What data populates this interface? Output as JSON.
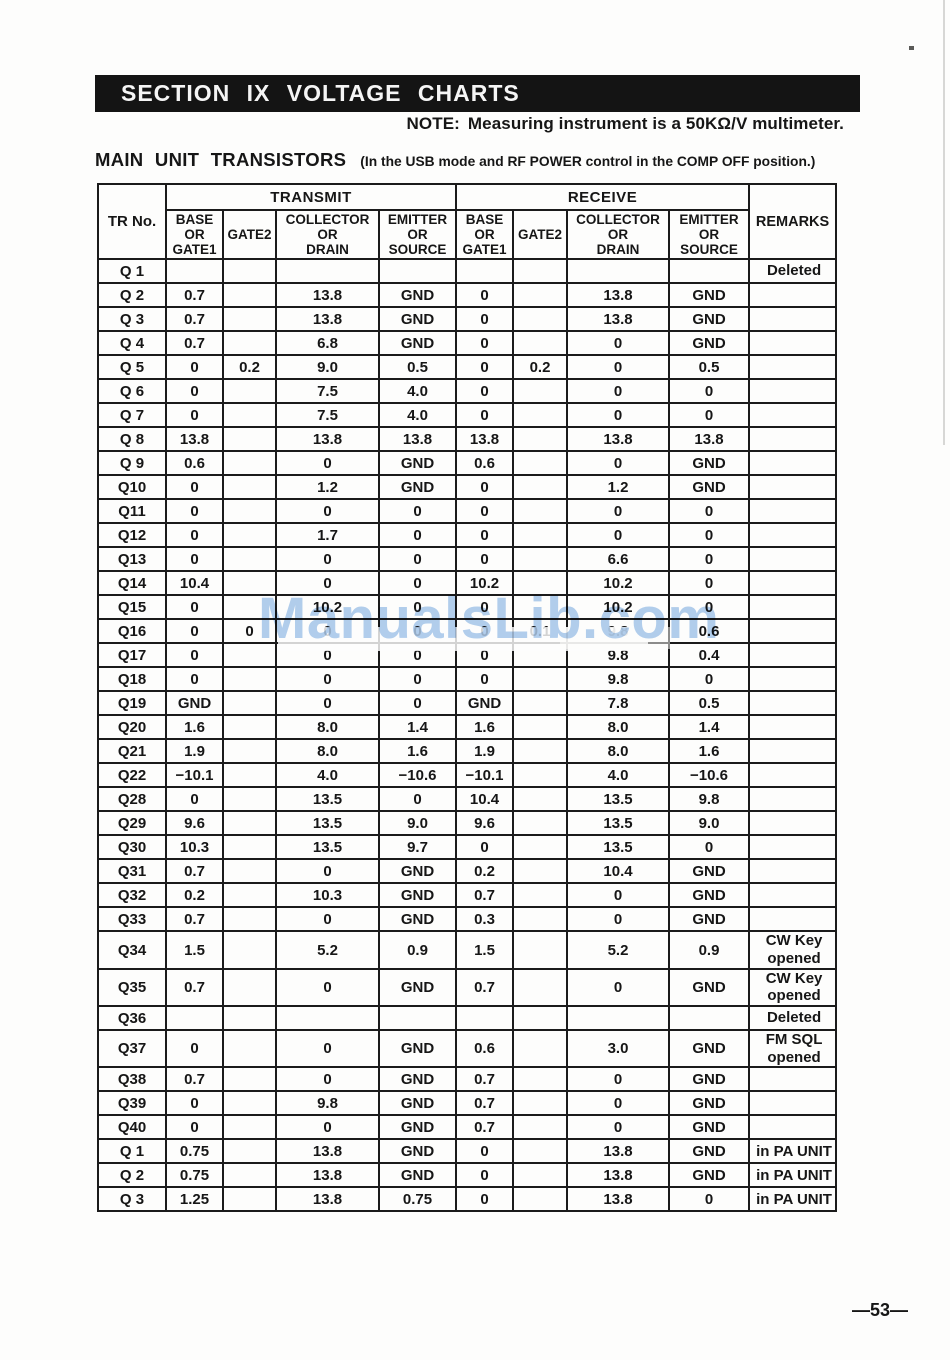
{
  "page": {
    "section_title": "SECTION IX VOLTAGE CHARTS",
    "note_label": "NOTE:",
    "note_text": "Measuring instrument is a 50KΩ/V multimeter.",
    "table_title": "MAIN UNIT TRANSISTORS",
    "table_subtitle": "(In the USB mode and RF POWER control in the COMP OFF position.)",
    "watermark": "ManualsLib.com",
    "watermark_color": "#b3cfee",
    "page_number": "—53—"
  },
  "table": {
    "col_tr": "TR No.",
    "col_remarks": "REMARKS",
    "groups": [
      "TRANSMIT",
      "RECEIVE"
    ],
    "sub_headers": [
      "BASE\nOR\nGATE1",
      "GATE2",
      "COLLECTOR\nOR\nDRAIN",
      "EMITTER\nOR\nSOURCE"
    ],
    "rows": [
      {
        "tr": "Q 1",
        "cells": [
          "",
          "",
          "",
          "",
          "",
          "",
          "",
          ""
        ],
        "remarks": "Deleted"
      },
      {
        "tr": "Q 2",
        "cells": [
          "0.7",
          "",
          "13.8",
          "GND",
          "0",
          "",
          "13.8",
          "GND"
        ],
        "remarks": ""
      },
      {
        "tr": "Q 3",
        "cells": [
          "0.7",
          "",
          "13.8",
          "GND",
          "0",
          "",
          "13.8",
          "GND"
        ],
        "remarks": ""
      },
      {
        "tr": "Q 4",
        "cells": [
          "0.7",
          "",
          "6.8",
          "GND",
          "0",
          "",
          "0",
          "GND"
        ],
        "remarks": ""
      },
      {
        "tr": "Q 5",
        "cells": [
          "0",
          "0.2",
          "9.0",
          "0.5",
          "0",
          "0.2",
          "0",
          "0.5"
        ],
        "remarks": ""
      },
      {
        "tr": "Q 6",
        "cells": [
          "0",
          "",
          "7.5",
          "4.0",
          "0",
          "",
          "0",
          "0"
        ],
        "remarks": ""
      },
      {
        "tr": "Q 7",
        "cells": [
          "0",
          "",
          "7.5",
          "4.0",
          "0",
          "",
          "0",
          "0"
        ],
        "remarks": ""
      },
      {
        "tr": "Q 8",
        "cells": [
          "13.8",
          "",
          "13.8",
          "13.8",
          "13.8",
          "",
          "13.8",
          "13.8"
        ],
        "remarks": ""
      },
      {
        "tr": "Q 9",
        "cells": [
          "0.6",
          "",
          "0",
          "GND",
          "0.6",
          "",
          "0",
          "GND"
        ],
        "remarks": ""
      },
      {
        "tr": "Q10",
        "cells": [
          "0",
          "",
          "1.2",
          "GND",
          "0",
          "",
          "1.2",
          "GND"
        ],
        "remarks": ""
      },
      {
        "tr": "Q11",
        "cells": [
          "0",
          "",
          "0",
          "0",
          "0",
          "",
          "0",
          "0"
        ],
        "remarks": ""
      },
      {
        "tr": "Q12",
        "cells": [
          "0",
          "",
          "1.7",
          "0",
          "0",
          "",
          "0",
          "0"
        ],
        "remarks": ""
      },
      {
        "tr": "Q13",
        "cells": [
          "0",
          "",
          "0",
          "0",
          "0",
          "",
          "6.6",
          "0"
        ],
        "remarks": ""
      },
      {
        "tr": "Q14",
        "cells": [
          "10.4",
          "",
          "0",
          "0",
          "10.2",
          "",
          "10.2",
          "0"
        ],
        "remarks": ""
      },
      {
        "tr": "Q15",
        "cells": [
          "0",
          "",
          "10.2",
          "0",
          "0",
          "",
          "10.2",
          "0"
        ],
        "remarks": ""
      },
      {
        "tr": "Q16",
        "cells": [
          "0",
          "0",
          "0",
          "0",
          "0",
          "0.1",
          "9.8",
          "0.6"
        ],
        "remarks": ""
      },
      {
        "tr": "Q17",
        "cells": [
          "0",
          "",
          "0",
          "0",
          "0",
          "",
          "9.8",
          "0.4"
        ],
        "remarks": ""
      },
      {
        "tr": "Q18",
        "cells": [
          "0",
          "",
          "0",
          "0",
          "0",
          "",
          "9.8",
          "0"
        ],
        "remarks": ""
      },
      {
        "tr": "Q19",
        "cells": [
          "GND",
          "",
          "0",
          "0",
          "GND",
          "",
          "7.8",
          "0.5"
        ],
        "remarks": ""
      },
      {
        "tr": "Q20",
        "cells": [
          "1.6",
          "",
          "8.0",
          "1.4",
          "1.6",
          "",
          "8.0",
          "1.4"
        ],
        "remarks": ""
      },
      {
        "tr": "Q21",
        "cells": [
          "1.9",
          "",
          "8.0",
          "1.6",
          "1.9",
          "",
          "8.0",
          "1.6"
        ],
        "remarks": ""
      },
      {
        "tr": "Q22",
        "cells": [
          "−10.1",
          "",
          "4.0",
          "−10.6",
          "−10.1",
          "",
          "4.0",
          "−10.6"
        ],
        "remarks": ""
      },
      {
        "tr": "Q28",
        "cells": [
          "0",
          "",
          "13.5",
          "0",
          "10.4",
          "",
          "13.5",
          "9.8"
        ],
        "remarks": ""
      },
      {
        "tr": "Q29",
        "cells": [
          "9.6",
          "",
          "13.5",
          "9.0",
          "9.6",
          "",
          "13.5",
          "9.0"
        ],
        "remarks": ""
      },
      {
        "tr": "Q30",
        "cells": [
          "10.3",
          "",
          "13.5",
          "9.7",
          "0",
          "",
          "13.5",
          "0"
        ],
        "remarks": ""
      },
      {
        "tr": "Q31",
        "cells": [
          "0.7",
          "",
          "0",
          "GND",
          "0.2",
          "",
          "10.4",
          "GND"
        ],
        "remarks": ""
      },
      {
        "tr": "Q32",
        "cells": [
          "0.2",
          "",
          "10.3",
          "GND",
          "0.7",
          "",
          "0",
          "GND"
        ],
        "remarks": ""
      },
      {
        "tr": "Q33",
        "cells": [
          "0.7",
          "",
          "0",
          "GND",
          "0.3",
          "",
          "0",
          "GND"
        ],
        "remarks": ""
      },
      {
        "tr": "Q34",
        "cells": [
          "1.5",
          "",
          "5.2",
          "0.9",
          "1.5",
          "",
          "5.2",
          "0.9"
        ],
        "remarks": "CW Key\nopened"
      },
      {
        "tr": "Q35",
        "cells": [
          "0.7",
          "",
          "0",
          "GND",
          "0.7",
          "",
          "0",
          "GND"
        ],
        "remarks": "CW Key\nopened"
      },
      {
        "tr": "Q36",
        "cells": [
          "",
          "",
          "",
          "",
          "",
          "",
          "",
          ""
        ],
        "remarks": "Deleted"
      },
      {
        "tr": "Q37",
        "cells": [
          "0",
          "",
          "0",
          "GND",
          "0.6",
          "",
          "3.0",
          "GND"
        ],
        "remarks": "FM SQL\nopened"
      },
      {
        "tr": "Q38",
        "cells": [
          "0.7",
          "",
          "0",
          "GND",
          "0.7",
          "",
          "0",
          "GND"
        ],
        "remarks": ""
      },
      {
        "tr": "Q39",
        "cells": [
          "0",
          "",
          "9.8",
          "GND",
          "0.7",
          "",
          "0",
          "GND"
        ],
        "remarks": ""
      },
      {
        "tr": "Q40",
        "cells": [
          "0",
          "",
          "0",
          "GND",
          "0.7",
          "",
          "0",
          "GND"
        ],
        "remarks": ""
      },
      {
        "tr": "Q 1",
        "cells": [
          "0.75",
          "",
          "13.8",
          "GND",
          "0",
          "",
          "13.8",
          "GND"
        ],
        "remarks": "in PA UNIT"
      },
      {
        "tr": "Q 2",
        "cells": [
          "0.75",
          "",
          "13.8",
          "GND",
          "0",
          "",
          "13.8",
          "GND"
        ],
        "remarks": "in PA UNIT"
      },
      {
        "tr": "Q 3",
        "cells": [
          "1.25",
          "",
          "13.8",
          "0.75",
          "0",
          "",
          "13.8",
          "0"
        ],
        "remarks": "in PA UNIT"
      }
    ]
  }
}
